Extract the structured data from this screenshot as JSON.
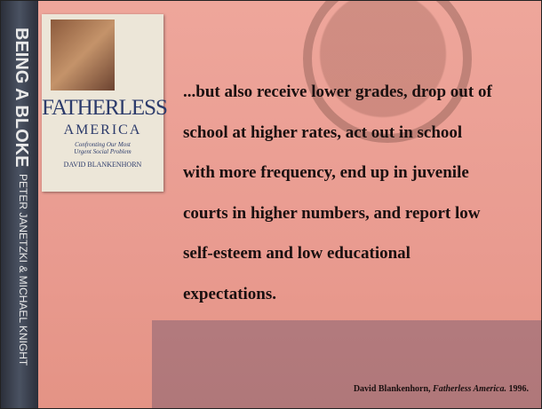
{
  "spine": {
    "title": "BEING A BLOKE",
    "authors": "PETER JANETZKI & MICHAEL KNIGHT"
  },
  "cover": {
    "title_line1": "FATHERLESS",
    "title_line2": "AMERICA",
    "subtitle_line1": "Confronting Our Most",
    "subtitle_line2": "Urgent Social Problem",
    "author": "DAVID BLANKENHORN"
  },
  "quote": {
    "lines": [
      "...but also receive lower grades, drop out of",
      "school at higher rates, act out in school",
      "with more frequency, end up in juvenile",
      "courts in higher numbers, and report low",
      "self-esteem and low educational",
      "expectations."
    ]
  },
  "citation": {
    "author": "David Blankenhorn,",
    "work": "Fatherless America.",
    "year": "1996."
  }
}
